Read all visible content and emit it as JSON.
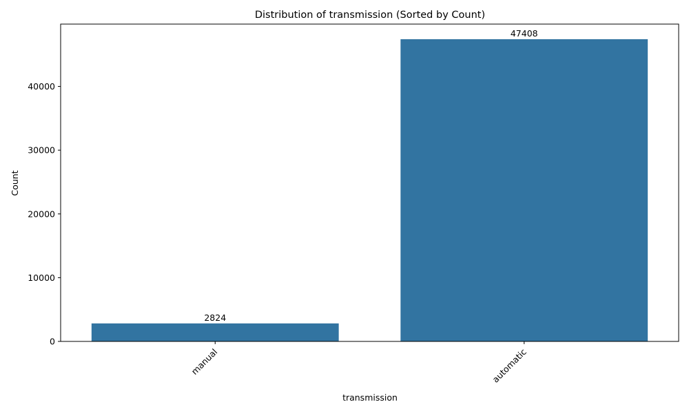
{
  "chart_data": {
    "type": "bar",
    "title": "Distribution of transmission (Sorted by Count)",
    "xlabel": "transmission",
    "ylabel": "Count",
    "categories": [
      "manual",
      "automatic"
    ],
    "values": [
      2824,
      47408
    ],
    "value_labels": [
      "2824",
      "47408"
    ],
    "ylim": [
      0,
      49778
    ],
    "yticks": [
      0,
      10000,
      20000,
      30000,
      40000
    ],
    "ytick_labels": [
      "0",
      "10000",
      "20000",
      "30000",
      "40000"
    ],
    "bar_color": "#3274a1",
    "grid": false,
    "legend": "none"
  }
}
